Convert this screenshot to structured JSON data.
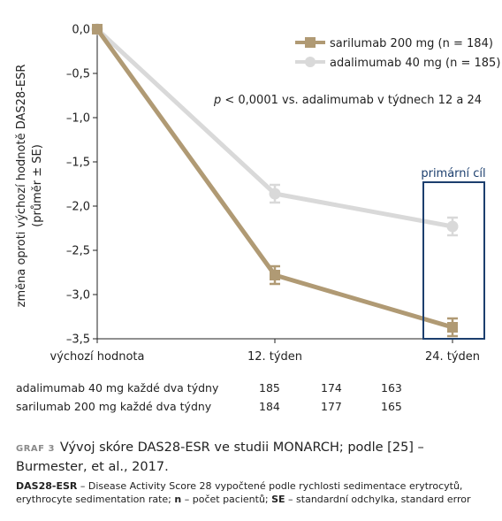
{
  "chart_data": {
    "type": "line",
    "ylabel_line1": "změna oproti výchozí hodnotě DAS28-ESR",
    "ylabel_line2": "(průměr ± SE)",
    "ylim": [
      -3.5,
      0
    ],
    "yticks": [
      0,
      -0.5,
      -1.0,
      -1.5,
      -2.0,
      -2.5,
      -3.0,
      -3.5
    ],
    "ytick_labels": [
      "0,0",
      "–0,5",
      "–1,0",
      "–1,5",
      "–2,0",
      "–2,5",
      "–3,0",
      "–3,5"
    ],
    "categories": [
      "výchozí hodnota",
      "12. týden",
      "24. týden"
    ],
    "grid": false,
    "legend_position": "top-right",
    "series": [
      {
        "name": "sarilumab 200 mg (n = 184)",
        "values": [
          0,
          -2.78,
          -3.37
        ],
        "se": [
          0,
          0.1,
          0.1
        ],
        "color": "#b09a74",
        "marker": "square"
      },
      {
        "name": "adalimumab 40 mg (n = 185)",
        "values": [
          0,
          -1.86,
          -2.23
        ],
        "se": [
          0,
          0.1,
          0.1
        ],
        "color": "#d9d9d9",
        "marker": "circle"
      }
    ],
    "annotation_prefix": "p",
    "annotation_text": " < 0,0001 vs. adalimumab v týdnech 12 a 24",
    "highlight_label": "primární cíl",
    "highlight_color": "#1c3f6e"
  },
  "counts": {
    "rows": [
      {
        "label": "adalimumab 40 mg každé dva týdny",
        "values": [
          "185",
          "174",
          "163"
        ]
      },
      {
        "label": "sarilumab 200 mg každé dva týdny",
        "values": [
          "184",
          "177",
          "165"
        ]
      }
    ]
  },
  "caption": {
    "tag": "GRAF 3",
    "text": "Vývoj skóre DAS28-ESR ve studii MONARCH; podle [25] – Burmester, et al., 2017."
  },
  "footnote": {
    "abbr1": "DAS28-ESR",
    "def1": " – Disease Activity Score 28 vypočtené podle rychlosti sedimentace erytrocytů, erythrocyte sedimentation rate; ",
    "abbr2": "n",
    "def2": " – počet pacientů; ",
    "abbr3": "SE",
    "def3": " – standardní odchylka, standard error"
  }
}
